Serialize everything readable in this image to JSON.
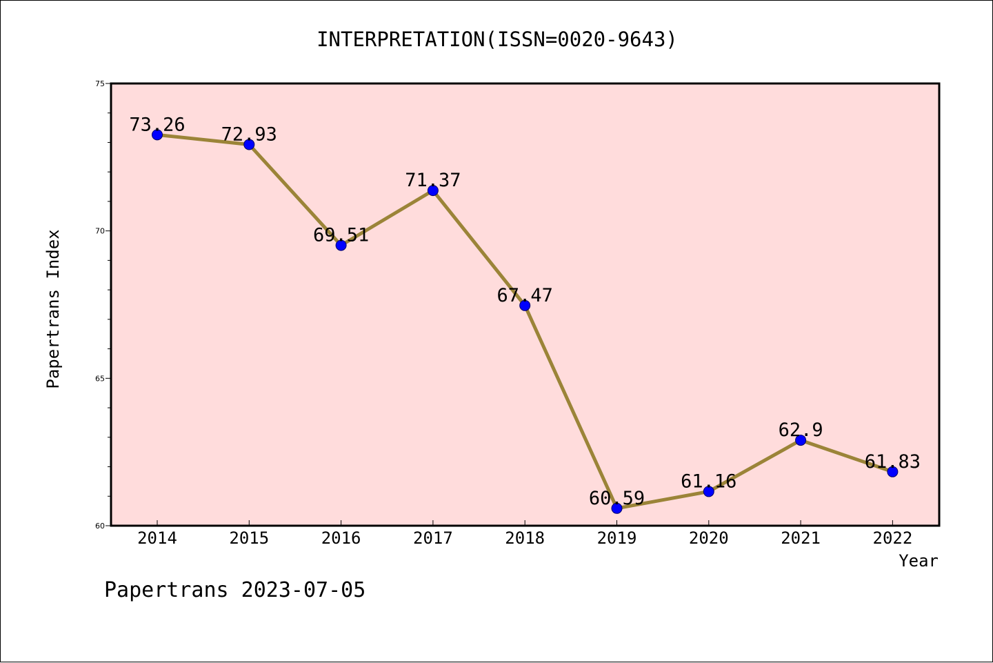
{
  "chart_data": {
    "type": "line",
    "title": "INTERPRETATION(ISSN=0020-9643)",
    "xlabel": "Year",
    "ylabel": "Papertrans Index",
    "categories": [
      "2014",
      "2015",
      "2016",
      "2017",
      "2018",
      "2019",
      "2020",
      "2021",
      "2022"
    ],
    "series": [
      {
        "values": [
          73.26,
          72.93,
          69.51,
          71.37,
          67.47,
          60.59,
          61.16,
          62.9,
          61.83
        ],
        "labels": [
          "73.26",
          "72.93",
          "69.51",
          "71.37",
          "67.47",
          "60.59",
          "61.16",
          "62.9",
          "61.83"
        ]
      }
    ],
    "ylim": [
      60,
      75
    ],
    "yticks": [
      "60",
      "65",
      "70",
      "75"
    ],
    "grid": false,
    "legend": "none",
    "colors": {
      "plot_background": "#ffdcdc",
      "line": "#9b8438",
      "marker": "#0000ff"
    }
  },
  "footer": {
    "text": "Papertrans 2023-07-05"
  }
}
